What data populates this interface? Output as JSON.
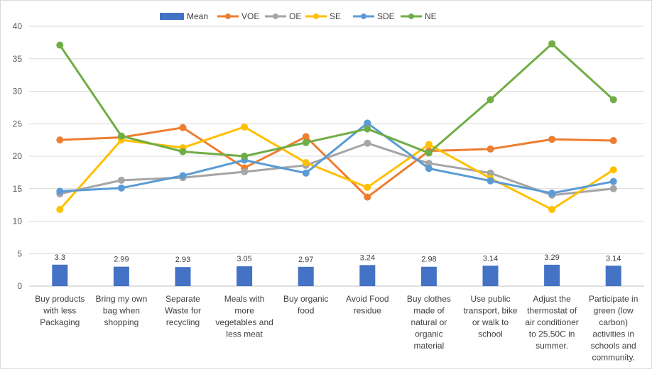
{
  "chart_data": {
    "type": "line",
    "categories": [
      "Buy products with less Packaging",
      "Bring my own bag when shopping",
      "Separate Waste for recycling",
      "Meals with more vegetables and less meat",
      "Buy organic food",
      "Avoid Food residue",
      "Buy clothes made of natural or organic material",
      "Use public transport, bike or walk to school",
      "Adjust the thermostat of air conditioner to 25.50C in summer.",
      "Participate in green (low carbon) activities in schools and community."
    ],
    "category_lines": [
      [
        "Buy products",
        "with less",
        "Packaging"
      ],
      [
        "Bring my own",
        "bag when",
        "shopping"
      ],
      [
        "Separate",
        "Waste for",
        "recycling"
      ],
      [
        "Meals with",
        "more",
        "vegetables and",
        "less meat"
      ],
      [
        "Buy organic",
        "food"
      ],
      [
        "Avoid Food",
        "residue"
      ],
      [
        "Buy clothes",
        "made of",
        "natural or",
        "organic",
        "material"
      ],
      [
        "Use public",
        "transport, bike",
        "or walk to",
        "school"
      ],
      [
        "Adjust the",
        "thermostat of",
        "air conditioner",
        "to 25.50C in",
        "summer."
      ],
      [
        "Participate in",
        "green (low",
        "carbon)",
        "activities in",
        "schools and",
        "community."
      ]
    ],
    "mean": {
      "name": "Mean",
      "color": "#4472c4",
      "values": [
        3.3,
        2.99,
        2.93,
        3.05,
        2.97,
        3.24,
        2.98,
        3.14,
        3.29,
        3.14
      ],
      "labels": [
        "3.3",
        "2.99",
        "2.93",
        "3.05",
        "2.97",
        "3.24",
        "2.98",
        "3.14",
        "3.29",
        "3.14"
      ]
    },
    "series": [
      {
        "name": "VOE",
        "color": "#ed7d31",
        "values": [
          22.5,
          22.9,
          24.4,
          18.2,
          23.0,
          13.7,
          20.8,
          21.1,
          22.6,
          22.4
        ]
      },
      {
        "name": "OE",
        "color": "#a5a5a5",
        "values": [
          14.2,
          16.3,
          16.7,
          17.6,
          18.6,
          22.0,
          18.9,
          17.4,
          14.0,
          15.0
        ]
      },
      {
        "name": "SE",
        "color": "#ffc000",
        "values": [
          11.8,
          22.5,
          21.3,
          24.5,
          19.0,
          15.2,
          21.8,
          16.6,
          11.8,
          17.9
        ]
      },
      {
        "name": "SDE",
        "color": "#5b9bd5",
        "values": [
          14.6,
          15.1,
          17.0,
          19.4,
          17.4,
          25.1,
          18.1,
          16.2,
          14.3,
          16.1
        ]
      },
      {
        "name": "NE",
        "color": "#70ad47",
        "values": [
          37.1,
          23.1,
          20.7,
          20.0,
          22.1,
          24.2,
          20.5,
          28.7,
          37.3,
          28.7
        ]
      }
    ],
    "yticks": [
      "0",
      "5",
      "10",
      "15",
      "20",
      "25",
      "30",
      "35",
      "40"
    ],
    "ylim": [
      0,
      40
    ],
    "grid": true,
    "legend_position": "top"
  }
}
